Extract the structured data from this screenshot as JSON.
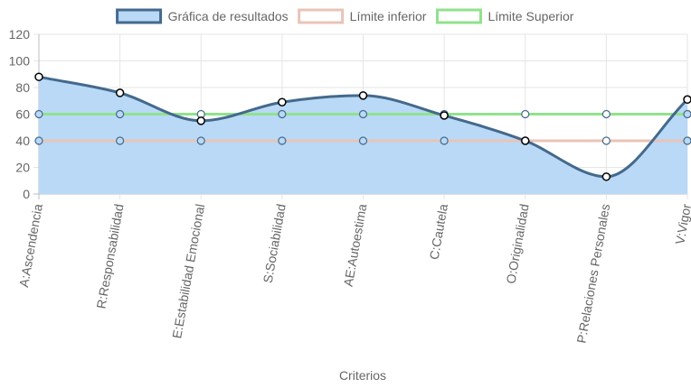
{
  "chart_data": {
    "type": "line",
    "categories": [
      "A:Ascendencia",
      "R:Responsabilidad",
      "E:Estabilidad Emocional",
      "S:Sociabilidad",
      "AE:Autoestima",
      "C:Cautela",
      "O:Originalidad",
      "P:Relaciones Personales",
      "V:Vigor"
    ],
    "series": [
      {
        "name": "Gráfica de resultados",
        "values": [
          88,
          76,
          55,
          69,
          74,
          59,
          40,
          13,
          71
        ],
        "line_color": "#44698c",
        "fill_color": "#b9d9f7",
        "filled": true,
        "smooth": true
      },
      {
        "name": "Límite inferior",
        "values": [
          40,
          40,
          40,
          40,
          40,
          40,
          40,
          40,
          40
        ],
        "line_color": "#e8c4b8",
        "filled": false,
        "smooth": false
      },
      {
        "name": "Límite Superior",
        "values": [
          60,
          60,
          60,
          60,
          60,
          60,
          60,
          60,
          60
        ],
        "line_color": "#90e28c",
        "filled": false,
        "smooth": false
      }
    ],
    "title": "",
    "xlabel": "Criterios",
    "ylabel": "",
    "ylim": [
      0,
      120
    ],
    "yticks": [
      0,
      20,
      40,
      60,
      80,
      100,
      120
    ],
    "grid": true,
    "legend_position": "top"
  }
}
